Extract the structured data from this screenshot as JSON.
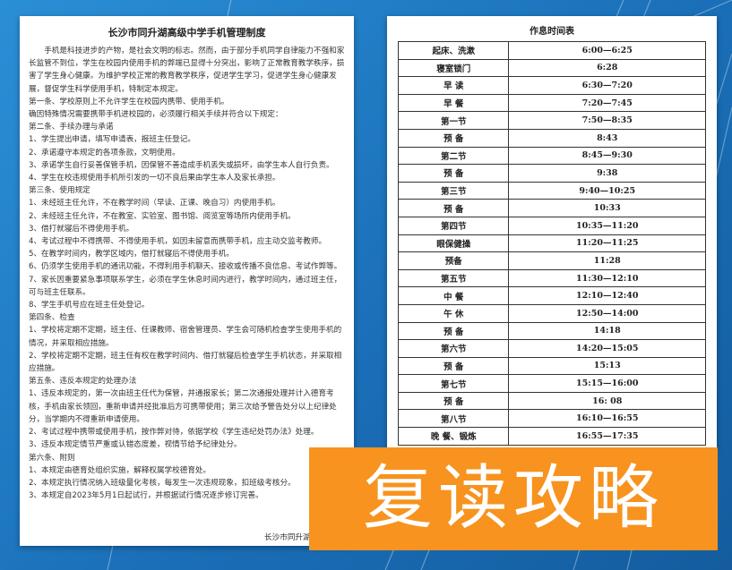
{
  "left_document": {
    "title": "长沙市同升湖高级中学手机管理制度",
    "paragraphs": [
      "手机是科技进步的产物，是社会文明的标志。然而，由于部分手机同学自律能力不强和家长监管不到位，学生在校园内使用手机的弊端已显得十分突出，影响了正常教育教学秩序，损害了学生身心健康。为维护学校正常的教育教学秩序，促进学生学习，促进学生身心健康发展，督促学生科学使用手机，特制定本规定。",
      "第一条、学校原则上不允许学生在校园内携带、使用手机。",
      "确因特殊情况需要携带手机进校园的，必须履行相关手续并符合以下规定：",
      "第二条、手续办理与承诺",
      "1、学生提出申请，填写申请表，报班主任登记。",
      "2、承诺遵守本规定的各项条款，文明使用。",
      "3、承诺学生自行妥善保管手机，因保管不善造成手机丢失或损坏，由学生本人自行负责。",
      "4、学生在校违规使用手机所引发的一切不良后果由学生本人及家长承担。",
      "第三条、使用规定",
      "1、未经班主任允许，不在教学时间（早读、正课、晚自习）内使用手机。",
      "2、未经班主任允许，不在教室、实验室、图书馆、阅览室等场所内使用手机。",
      "3、借打就寝后不得使用手机。",
      "4、考试过程中不得携带、不得使用手机，如因未留意而携带手机，应主动交监考教师。",
      "5、在教学时间内，教学区域内，借打就寝后不得使用手机。",
      "6、仍须学生使用手机的通讯功能，不得利用手机聊天、接收或传播不良信息、考试作弊等。",
      "7、家长因重要紧急事项联系学生，必须在学生休息时间内进行，教学时间内，通过班主任，可与班主任联系。",
      "8、学生手机号应在班主任处登记。",
      "第四条、检查",
      "1、学校将定期不定期，班主任、任课教师、宿舍管理员、学生会可随机检查学生使用手机的情况，并采取相应措施。",
      "2、学校将定期不定期，班主任有权在教学时间内、借打就寝后检查学生手机状态，并采取相应措施。",
      "第五条、违反本规定的处理办法",
      "1、违反本规定的，第一次由班主任代为保管，并通报家长；第二次通报处理并计入德育考核，手机由家长领回，重新申请并经批准后方可携带使用；第三次给予警告处分以上纪律处分，当学期内不得重新申请使用。",
      "2、考试过程中携带或使用手机，按作弊对待，依据学校《学生违纪处罚办法》处理。",
      "3、违反本规定情节严重或认错态度差，视情节给予纪律处分。",
      "第六条、附则",
      "1、本规定由德育处组织实施，解释权属学校德育处。",
      "2、本规定执行情况纳入班级量化考核，每发生一次违规现象，扣班级考核分。",
      "3、本规定自2023年5月1日起试行，并根据试行情况逐步修订完善。"
    ],
    "signature": "长沙市同升湖高级中学"
  },
  "right_document": {
    "title": "作息时间表",
    "rows": [
      [
        "起床、洗漱",
        "6:00—6:25"
      ],
      [
        "寝室锁门",
        "6:28"
      ],
      [
        "早 读",
        "6:30—7:20"
      ],
      [
        "早 餐",
        "7:20—7:45"
      ],
      [
        "第一节",
        "7:50—8:35"
      ],
      [
        "预 备",
        "8:43"
      ],
      [
        "第二节",
        "8:45—9:30"
      ],
      [
        "预 备",
        "9:38"
      ],
      [
        "第三节",
        "9:40—10:25"
      ],
      [
        "预 备",
        "10:33"
      ],
      [
        "第四节",
        "10:35—11:20"
      ],
      [
        "眼保健操",
        "11:20—11:25"
      ],
      [
        "预备",
        "11:28"
      ],
      [
        "第五节",
        "11:30—12:10"
      ],
      [
        "中 餐",
        "12:10—12:40"
      ],
      [
        "午 休",
        "12:50—14:00"
      ],
      [
        "预 备",
        "14:18"
      ],
      [
        "第六节",
        "14:20—15:05"
      ],
      [
        "预 备",
        "15:13"
      ],
      [
        "第七节",
        "15:15—16:00"
      ],
      [
        "预 备",
        "16: 08"
      ],
      [
        "第八节",
        "16:10—16:55"
      ],
      [
        "晚 餐、锻炼",
        "16:55—17:35"
      ]
    ]
  },
  "banner": {
    "text": "复读攻略"
  }
}
